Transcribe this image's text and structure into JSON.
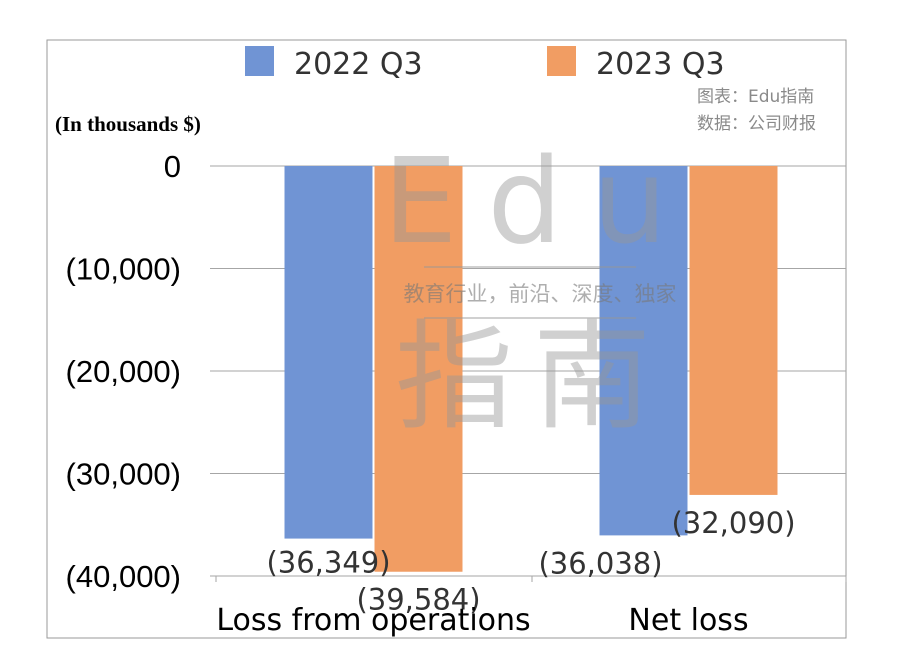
{
  "chart_data": {
    "type": "bar",
    "categories": [
      "Loss from operations",
      "Net loss"
    ],
    "series": [
      {
        "name": "2022 Q3",
        "color": "#7094d4",
        "values": [
          -36349,
          -36038
        ],
        "labels": [
          "(36,349)",
          "(36,038)"
        ]
      },
      {
        "name": "2023 Q3",
        "color": "#f19d63",
        "values": [
          -39584,
          -32090
        ],
        "labels": [
          "(39,584)",
          "(32,090)"
        ]
      }
    ],
    "unit_label": "(In thousands $)",
    "source": {
      "line1": "图表：Edu指南",
      "line2": "数据：公司财报"
    },
    "ylim": [
      -40000,
      0
    ],
    "yticks": [
      0,
      -10000,
      -20000,
      -30000,
      -40000
    ],
    "ytick_labels": [
      "0",
      "(10,000)",
      "(20,000)",
      "(30,000)",
      "(40,000)"
    ],
    "grid": true,
    "legend": "top"
  },
  "watermark": {
    "top": "Edu",
    "middle": "教育行业，前沿、深度、独家",
    "bottom": "指南"
  }
}
